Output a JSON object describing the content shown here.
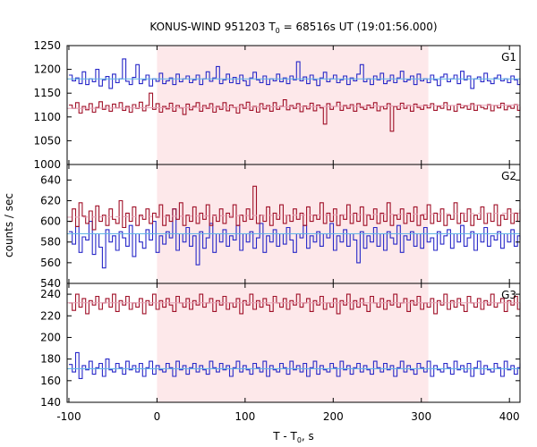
{
  "chart_data": {
    "type": "line",
    "title": {
      "main": "KONUS-WIND 951203 T",
      "sub": "0",
      "rest": " = 68516s UT (19:01:56.000)"
    },
    "xlabel": {
      "main": "T - T",
      "sub": "0",
      "rest": ", s"
    },
    "ylabel": "counts / sec",
    "xlim": [
      -102,
      412
    ],
    "xticks": [
      -100,
      0,
      100,
      200,
      300,
      400
    ],
    "x_start": -100,
    "bin_width": 3.8,
    "highlight_interval": [
      0,
      308
    ],
    "colors": {
      "series_a": "#2828c8",
      "series_b": "#a01028",
      "fit_a": "#5fb4e6",
      "fit_b": "#e6a0b4",
      "highlight": "#fde8ea"
    },
    "panels": [
      {
        "label": "G1",
        "ylim": [
          1000,
          1250
        ],
        "yticks": [
          1000,
          1050,
          1100,
          1150,
          1200,
          1250
        ],
        "series": [
          {
            "values": [
              1188,
              1176,
              1182,
              1170,
              1195,
              1168,
              1180,
              1174,
              1200,
              1165,
              1178,
              1185,
              1160,
              1190,
              1172,
              1180,
              1222,
              1175,
              1168,
              1183,
              1210,
              1170,
              1178,
              1188,
              1165,
              1180,
              1175,
              1192,
              1170,
              1176,
              1182,
              1168,
              1190,
              1174,
              1180,
              1186,
              1172,
              1178,
              1188,
              1168,
              1180,
              1195,
              1175,
              1182,
              1206,
              1170,
              1178,
              1190,
              1172,
              1183,
              1170,
              1188,
              1176,
              1166,
              1182,
              1194,
              1178,
              1172,
              1186,
              1168,
              1180,
              1176,
              1190,
              1174,
              1182,
              1170,
              1186,
              1178,
              1216,
              1176,
              1184,
              1170,
              1188,
              1178,
              1166,
              1182,
              1194,
              1174,
              1180,
              1188,
              1172,
              1178,
              1186,
              1168,
              1182,
              1176,
              1190,
              1210,
              1174,
              1180,
              1168,
              1186,
              1178,
              1192,
              1170,
              1176,
              1188,
              1172,
              1182,
              1196,
              1174,
              1178,
              1186,
              1168,
              1190,
              1176,
              1180,
              1172,
              1188,
              1178,
              1166,
              1184,
              1190,
              1174,
              1180,
              1188,
              1170,
              1196,
              1178,
              1186,
              1160,
              1180,
              1184,
              1174,
              1192,
              1176,
              1170,
              1182,
              1188,
              1176,
              1180,
              1172,
              1186,
              1178,
              1168,
              1182
            ],
            "fit": [
              1180,
              1180
            ]
          },
          {
            "values": [
              1125,
              1118,
              1130,
              1108,
              1122,
              1115,
              1128,
              1110,
              1120,
              1132,
              1116,
              1124,
              1112,
              1127,
              1119,
              1130,
              1114,
              1122,
              1110,
              1126,
              1118,
              1131,
              1113,
              1124,
              1150,
              1116,
              1128,
              1110,
              1122,
              1117,
              1129,
              1112,
              1124,
              1119,
              1105,
              1127,
              1115,
              1122,
              1130,
              1112,
              1124,
              1118,
              1128,
              1110,
              1122,
              1116,
              1130,
              1113,
              1125,
              1120,
              1108,
              1126,
              1118,
              1131,
              1114,
              1122,
              1110,
              1128,
              1117,
              1124,
              1112,
              1130,
              1116,
              1122,
              1136,
              1115,
              1124,
              1118,
              1128,
              1111,
              1123,
              1117,
              1129,
              1113,
              1125,
              1119,
              1085,
              1128,
              1116,
              1122,
              1131,
              1114,
              1124,
              1118,
              1126,
              1112,
              1128,
              1120,
              1116,
              1125,
              1119,
              1130,
              1113,
              1122,
              1117,
              1128,
              1070,
              1122,
              1116,
              1129,
              1118,
              1124,
              1112,
              1127,
              1120,
              1116,
              1125,
              1119,
              1128,
              1114,
              1122,
              1118,
              1130,
              1115,
              1124,
              1112,
              1127,
              1119,
              1123,
              1116,
              1128,
              1114,
              1125,
              1120,
              1117,
              1126,
              1113,
              1124,
              1119,
              1129,
              1115,
              1122,
              1118,
              1126,
              1114,
              1122
            ],
            "fit": [
              1118,
              1125
            ]
          }
        ]
      },
      {
        "label": "G2",
        "ylim": [
          540,
          655
        ],
        "yticks": [
          540,
          560,
          580,
          600,
          620,
          640
        ],
        "series": [
          {
            "values": [
              590,
              578,
              595,
              570,
              585,
              582,
              600,
              568,
              588,
              575,
              555,
              592,
              580,
              586,
              572,
              590,
              584,
              576,
              596,
              566,
              588,
              580,
              574,
              592,
              582,
              600,
              570,
              586,
              578,
              590,
              584,
              612,
              572,
              588,
              580,
              594,
              576,
              586,
              558,
              590,
              574,
              584,
              598,
              570,
              588,
              580,
              592,
              576,
              586,
              582,
              596,
              572,
              588,
              580,
              590,
              574,
              584,
              598,
              570,
              586,
              580,
              592,
              576,
              588,
              578,
              594,
              582,
              570,
              588,
              584,
              596,
              574,
              586,
              580,
              590,
              576,
              588,
              584,
              598,
              572,
              586,
              580,
              592,
              576,
              588,
              582,
              560,
              590,
              574,
              586,
              580,
              594,
              576,
              588,
              572,
              590,
              584,
              578,
              596,
              570,
              586,
              582,
              590,
              576,
              588,
              574,
              594,
              580,
              584,
              572,
              590,
              578,
              586,
              592,
              574,
              588,
              580,
              596,
              576,
              584,
              590,
              572,
              588,
              580,
              594,
              576,
              586,
              582,
              590,
              574,
              588,
              580,
              592,
              576,
              586,
              582
            ],
            "fit": [
              588,
              588
            ]
          },
          {
            "values": [
              600,
              612,
              595,
              618,
              605,
              598,
              610,
              592,
              615,
              600,
              606,
              596,
              612,
              602,
              598,
              620,
              594,
              608,
              600,
              614,
              596,
              606,
              602,
              612,
              598,
              608,
              604,
              616,
              596,
              606,
              600,
              612,
              602,
              618,
              596,
              606,
              600,
              614,
              598,
              608,
              602,
              616,
              596,
              606,
              600,
              612,
              598,
              608,
              604,
              616,
              596,
              606,
              600,
              612,
              602,
              634,
              598,
              606,
              600,
              614,
              596,
              608,
              602,
              616,
              598,
              606,
              600,
              612,
              602,
              608,
              596,
              614,
              600,
              606,
              602,
              618,
              598,
              608,
              600,
              612,
              596,
              606,
              602,
              616,
              598,
              608,
              600,
              614,
              596,
              606,
              602,
              612,
              598,
              608,
              600,
              618,
              596,
              606,
              602,
              612,
              598,
              608,
              600,
              614,
              596,
              606,
              602,
              616,
              598,
              608,
              600,
              612,
              596,
              606,
              602,
              618,
              598,
              608,
              600,
              612,
              596,
              606,
              602,
              614,
              598,
              608,
              600,
              616,
              596,
              606,
              602,
              612,
              598,
              608,
              600,
              612
            ],
            "fit": [
              604,
              608
            ]
          }
        ]
      },
      {
        "label": "G3",
        "ylim": [
          140,
          250
        ],
        "yticks": [
          140,
          160,
          180,
          200,
          220,
          240
        ],
        "series": [
          {
            "values": [
              175,
              168,
              186,
              162,
              174,
              170,
              178,
              166,
              172,
              176,
              164,
              180,
              170,
              168,
              176,
              172,
              166,
              178,
              170,
              174,
              168,
              176,
              164,
              172,
              178,
              166,
              174,
              170,
              168,
              176,
              172,
              164,
              178,
              170,
              174,
              166,
              172,
              176,
              168,
              174,
              170,
              166,
              178,
              172,
              168,
              176,
              170,
              174,
              164,
              172,
              178,
              168,
              174,
              170,
              166,
              176,
              172,
              168,
              178,
              164,
              174,
              170,
              168,
              176,
              172,
              166,
              178,
              170,
              174,
              168,
              176,
              164,
              172,
              178,
              166,
              174,
              170,
              168,
              176,
              172,
              164,
              178,
              170,
              174,
              166,
              172,
              176,
              168,
              174,
              170,
              166,
              178,
              172,
              168,
              176,
              170,
              174,
              164,
              172,
              178,
              168,
              174,
              170,
              166,
              176,
              172,
              168,
              178,
              164,
              174,
              170,
              168,
              176,
              172,
              166,
              178,
              170,
              174,
              168,
              176,
              164,
              172,
              178,
              166,
              174,
              170,
              168,
              176,
              172,
              164,
              178,
              170,
              174,
              166,
              172,
              176
            ],
            "fit": [
              171,
              171
            ]
          },
          {
            "values": [
              232,
              225,
              240,
              228,
              236,
              222,
              234,
              230,
              238,
              226,
              232,
              236,
              228,
              240,
              224,
              234,
              230,
              238,
              226,
              232,
              228,
              236,
              222,
              234,
              230,
              240,
              226,
              234,
              228,
              236,
              230,
              224,
              238,
              232,
              228,
              236,
              226,
              234,
              230,
              240,
              228,
              232,
              236,
              224,
              234,
              230,
              238,
              226,
              232,
              228,
              236,
              222,
              234,
              230,
              240,
              226,
              234,
              228,
              236,
              230,
              224,
              238,
              232,
              228,
              236,
              226,
              234,
              230,
              240,
              228,
              232,
              236,
              224,
              234,
              230,
              238,
              226,
              232,
              228,
              236,
              222,
              234,
              230,
              240,
              226,
              234,
              228,
              236,
              230,
              224,
              238,
              232,
              228,
              236,
              226,
              234,
              230,
              240,
              228,
              232,
              236,
              224,
              234,
              230,
              238,
              226,
              232,
              228,
              236,
              222,
              234,
              230,
              240,
              226,
              234,
              228,
              236,
              230,
              224,
              238,
              232,
              228,
              236,
              226,
              234,
              230,
              240,
              228,
              232,
              236,
              224,
              234,
              230,
              238,
              226,
              232
            ],
            "fit": [
              232,
              232
            ]
          }
        ]
      }
    ]
  }
}
